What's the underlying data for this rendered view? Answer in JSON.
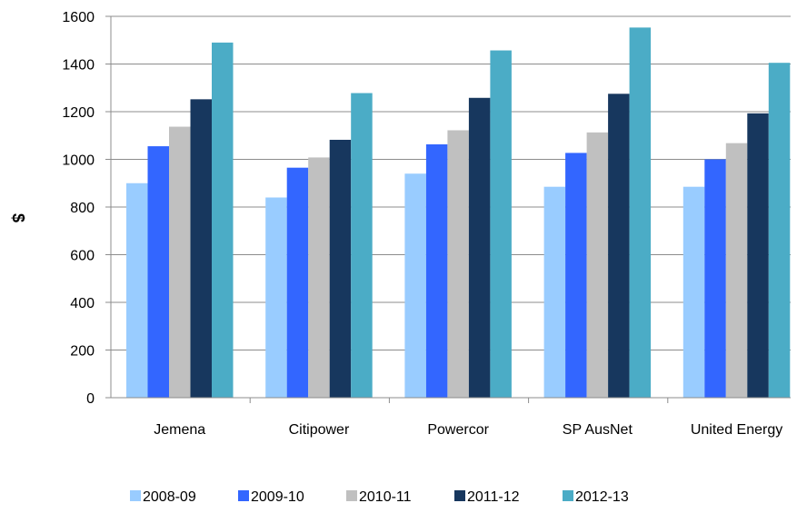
{
  "chart_data": {
    "type": "bar",
    "ylabel": "$",
    "xlabel": "",
    "ylim": [
      0,
      1600
    ],
    "yticks": [
      0,
      200,
      400,
      600,
      800,
      1000,
      1200,
      1400,
      1600
    ],
    "grid": "horizontal",
    "legend_position": "bottom",
    "categories": [
      "Jemena",
      "Citipower",
      "Powercor",
      "SP AusNet",
      "United Energy"
    ],
    "series": [
      {
        "name": "2008-09",
        "color": "#99ccff",
        "values": [
          900,
          840,
          940,
          885,
          885
        ]
      },
      {
        "name": "2009-10",
        "color": "#3366ff",
        "values": [
          1055,
          965,
          1063,
          1027,
          1000
        ]
      },
      {
        "name": "2010-11",
        "color": "#c0c0c0",
        "values": [
          1137,
          1008,
          1122,
          1113,
          1068
        ]
      },
      {
        "name": "2011-12",
        "color": "#17375e",
        "values": [
          1252,
          1082,
          1258,
          1275,
          1193
        ]
      },
      {
        "name": "2012-13",
        "color": "#4bacc6",
        "values": [
          1490,
          1278,
          1457,
          1553,
          1405
        ]
      }
    ]
  }
}
